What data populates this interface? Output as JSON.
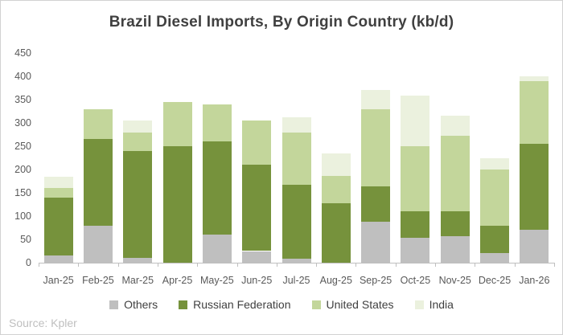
{
  "chart_data": {
    "type": "bar",
    "stacked": true,
    "title": "Brazil Diesel Imports, By Origin Country (kb/d)",
    "categories": [
      "Jan-25",
      "Feb-25",
      "Mar-25",
      "Apr-25",
      "May-25",
      "Jun-25",
      "Jul-25",
      "Aug-25",
      "Sep-25",
      "Oct-25",
      "Nov-25",
      "Dec-25",
      "Jan-26"
    ],
    "series": [
      {
        "name": "Others",
        "color": "#bfbfbf",
        "values": [
          15,
          80,
          10,
          0,
          60,
          25,
          8,
          0,
          88,
          53,
          57,
          20,
          70
        ]
      },
      {
        "name": "Russian Federation",
        "color": "#76923c",
        "values": [
          125,
          185,
          230,
          250,
          200,
          185,
          160,
          128,
          75,
          57,
          53,
          60,
          185
        ]
      },
      {
        "name": "United States",
        "color": "#c3d69b",
        "values": [
          20,
          65,
          40,
          95,
          80,
          95,
          112,
          59,
          167,
          140,
          162,
          120,
          135
        ]
      },
      {
        "name": "India",
        "color": "#ebf1de",
        "values": [
          25,
          0,
          25,
          0,
          0,
          0,
          32,
          48,
          40,
          108,
          43,
          25,
          10
        ]
      }
    ],
    "totals": [
      185,
      330,
      305,
      345,
      340,
      305,
      312,
      235,
      370,
      358,
      315,
      225,
      400
    ],
    "ylim": [
      0,
      450
    ],
    "ytick_step": 50,
    "grid": false,
    "legend_position": "bottom",
    "source": "Source: Kpler"
  }
}
